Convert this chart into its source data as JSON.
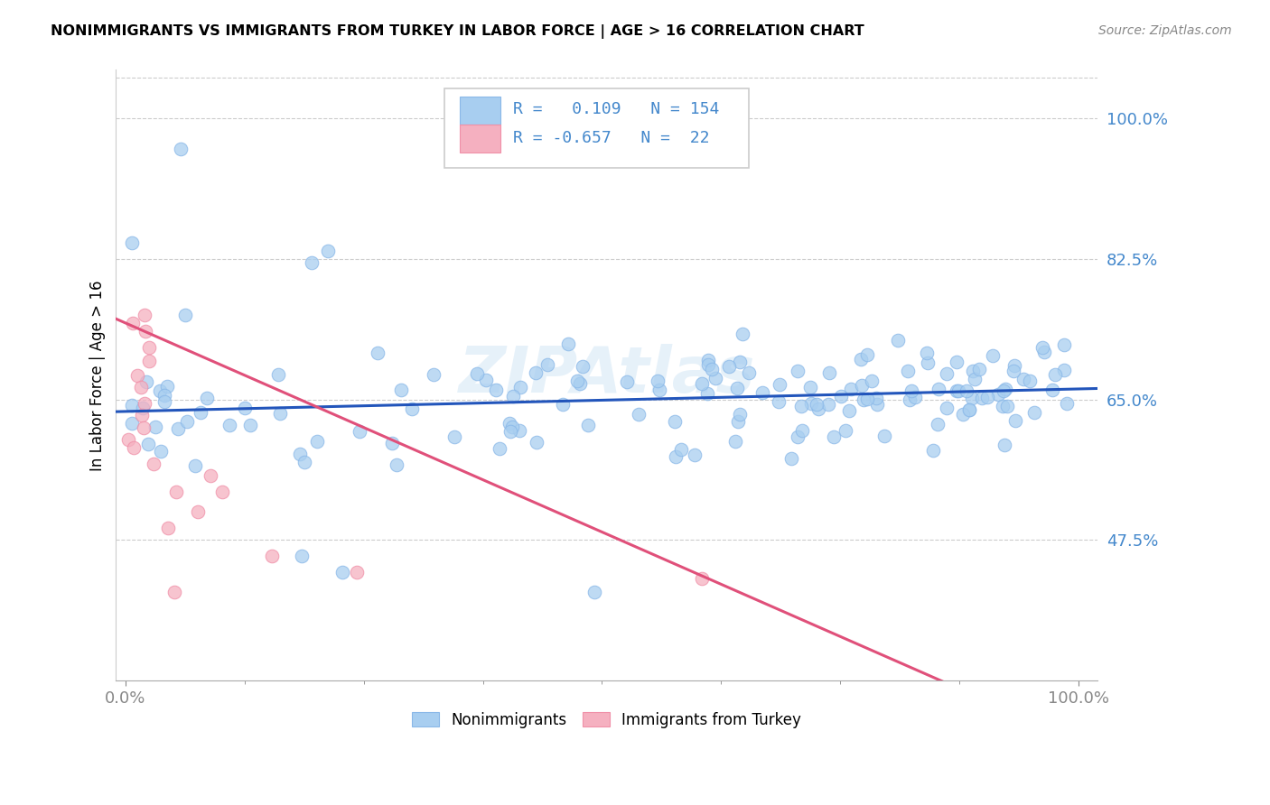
{
  "title": "NONIMMIGRANTS VS IMMIGRANTS FROM TURKEY IN LABOR FORCE | AGE > 16 CORRELATION CHART",
  "source": "Source: ZipAtlas.com",
  "ylabel": "In Labor Force | Age > 16",
  "legend_labels": [
    "Nonimmigrants",
    "Immigrants from Turkey"
  ],
  "legend_r": [
    "0.109",
    "-0.657"
  ],
  "legend_n": [
    "154",
    "22"
  ],
  "blue_color": "#A8CEF0",
  "pink_color": "#F5B0C0",
  "blue_edge_color": "#8AB8E8",
  "pink_edge_color": "#F090A8",
  "blue_line_color": "#2255BB",
  "pink_line_color": "#E0507A",
  "axis_tick_color": "#4488CC",
  "ytick_labels": [
    "47.5%",
    "65.0%",
    "82.5%",
    "100.0%"
  ],
  "ytick_values": [
    0.475,
    0.65,
    0.825,
    1.0
  ],
  "xtick_labels": [
    "0.0%",
    "100.0%"
  ],
  "xtick_values": [
    0.0,
    1.0
  ],
  "xlim": [
    -0.01,
    1.02
  ],
  "ylim": [
    0.3,
    1.06
  ],
  "blue_intercept": 0.635,
  "blue_slope": 0.028,
  "pink_intercept": 0.745,
  "pink_slope": -0.52,
  "watermark": "ZIPAtlas"
}
